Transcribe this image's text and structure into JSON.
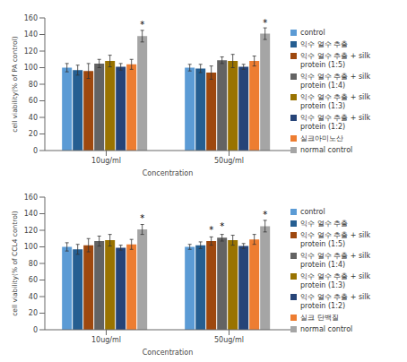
{
  "chart_data": [
    {
      "type": "bar",
      "y_label": "cell viability(% of PA control)",
      "x_label": "Concentration",
      "categories": [
        "10ug/ml",
        "50ug/ml"
      ],
      "ylim": [
        0,
        160
      ],
      "yticks": [
        0,
        20,
        40,
        60,
        80,
        100,
        120,
        140,
        160
      ],
      "grid": false,
      "legend": "right",
      "series": [
        {
          "name": "control",
          "color": "#5B9BD5",
          "values": [
            100,
            100
          ],
          "errors": [
            5,
            4
          ],
          "significance": [
            null,
            null
          ]
        },
        {
          "name": "익수 열수 추출",
          "color": "#255E91",
          "values": [
            97,
            99
          ],
          "errors": [
            6,
            5
          ],
          "significance": [
            null,
            null
          ]
        },
        {
          "name": "익수 열수 추출 + silk protein (1:5)",
          "color": "#9E480E",
          "values": [
            96,
            94
          ],
          "errors": [
            9,
            8
          ],
          "significance": [
            null,
            null
          ]
        },
        {
          "name": "익수 열수 추출 + silk protein (1:4)",
          "color": "#636363",
          "values": [
            105,
            109
          ],
          "errors": [
            5,
            4
          ],
          "significance": [
            null,
            null
          ]
        },
        {
          "name": "익수 열수 추출 + silk protein (1:3)",
          "color": "#997300",
          "values": [
            108,
            108
          ],
          "errors": [
            7,
            8
          ],
          "significance": [
            null,
            null
          ]
        },
        {
          "name": "익수 열수 추출 + silk protein (1:2)",
          "color": "#264478",
          "values": [
            101,
            101
          ],
          "errors": [
            4,
            3
          ],
          "significance": [
            null,
            null
          ]
        },
        {
          "name": "실크아미노산",
          "color": "#ED7D31",
          "values": [
            104,
            108
          ],
          "errors": [
            6,
            6
          ],
          "significance": [
            null,
            null
          ]
        },
        {
          "name": "normal control",
          "color": "#A5A5A5",
          "values": [
            138,
            141
          ],
          "errors": [
            7,
            7
          ],
          "significance": [
            "*",
            "*"
          ]
        }
      ]
    },
    {
      "type": "bar",
      "y_label": "cell viability(% of CCL4 control)",
      "x_label": "Concentration",
      "categories": [
        "10ug/ml",
        "50ug/ml"
      ],
      "ylim": [
        0,
        160
      ],
      "yticks": [
        0,
        20,
        40,
        60,
        80,
        100,
        120,
        140,
        160
      ],
      "grid": false,
      "legend": "right",
      "series": [
        {
          "name": "control",
          "color": "#5B9BD5",
          "values": [
            100,
            100
          ],
          "errors": [
            5,
            3
          ],
          "significance": [
            null,
            null
          ]
        },
        {
          "name": "익수 열수 추출",
          "color": "#255E91",
          "values": [
            97,
            102
          ],
          "errors": [
            6,
            4
          ],
          "significance": [
            null,
            null
          ]
        },
        {
          "name": "익수 열수 추출 + silk protein (1:5)",
          "color": "#9E480E",
          "values": [
            102,
            107
          ],
          "errors": [
            8,
            5
          ],
          "significance": [
            null,
            "*"
          ]
        },
        {
          "name": "익수 열수 추출 + silk protein (1:4)",
          "color": "#636363",
          "values": [
            107,
            111
          ],
          "errors": [
            6,
            4
          ],
          "significance": [
            null,
            "*"
          ]
        },
        {
          "name": "익수 열수 추출 + silk protein (1:3)",
          "color": "#997300",
          "values": [
            108,
            108
          ],
          "errors": [
            7,
            6
          ],
          "significance": [
            null,
            null
          ]
        },
        {
          "name": "익수 열수 추출 + silk protein (1:2)",
          "color": "#264478",
          "values": [
            99,
            101
          ],
          "errors": [
            3,
            3
          ],
          "significance": [
            null,
            null
          ]
        },
        {
          "name": "실크 단백질",
          "color": "#ED7D31",
          "values": [
            103,
            109
          ],
          "errors": [
            6,
            6
          ],
          "significance": [
            null,
            null
          ]
        },
        {
          "name": "normal control",
          "color": "#A5A5A5",
          "values": [
            121,
            125
          ],
          "errors": [
            6,
            7
          ],
          "significance": [
            "*",
            "*"
          ]
        }
      ]
    }
  ]
}
